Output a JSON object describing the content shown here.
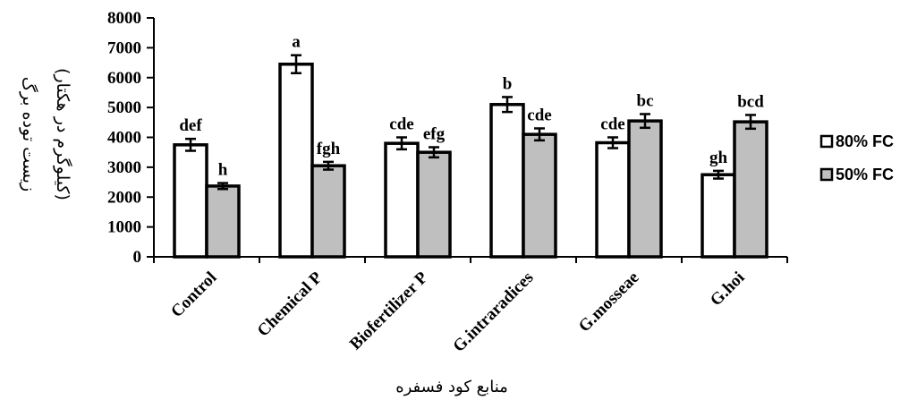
{
  "chart_data": {
    "type": "bar",
    "title": "",
    "xlabel": "منابع کود فسفره",
    "ylabel_line1": "زیست توده برگ",
    "ylabel_line2": "(کیلوگرم در هکتار)",
    "ylim": [
      0,
      8000
    ],
    "yticks": [
      "0",
      "1000",
      "2000",
      "3000",
      "4000",
      "5000",
      "6000",
      "7000",
      "8000"
    ],
    "categories": [
      "Control",
      "Chemical P",
      "Biofertilizer P",
      "G.intraradices",
      "G.mosseae",
      "G.hoi"
    ],
    "legend_position": "right",
    "series": [
      {
        "name": "80% FC",
        "color": "#ffffff",
        "values": [
          3750,
          6450,
          3800,
          5100,
          3820,
          2750
        ],
        "errors": [
          200,
          300,
          200,
          250,
          180,
          130
        ],
        "letters": [
          "def",
          "a",
          "cde",
          "b",
          "cde",
          "gh"
        ]
      },
      {
        "name": "50% FC",
        "color": "#bfbfbf",
        "values": [
          2370,
          3050,
          3500,
          4100,
          4550,
          4520
        ],
        "errors": [
          100,
          130,
          170,
          200,
          230,
          230
        ],
        "letters": [
          "h",
          "fgh",
          "efg",
          "cde",
          "bc",
          "bcd"
        ]
      }
    ]
  }
}
